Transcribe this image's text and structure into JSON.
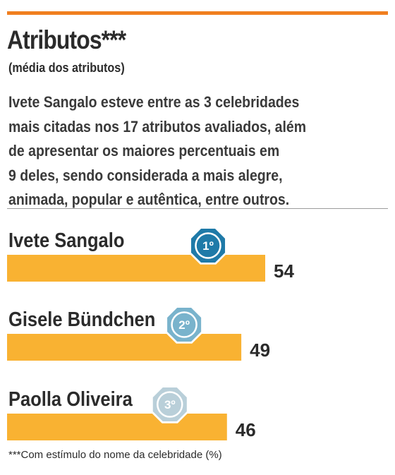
{
  "header": {
    "title": "Atributos***",
    "subtitle": "(média dos atributos)",
    "description_lines": [
      "Ivete Sangalo esteve entre as 3 celebridades",
      "mais citadas nos 17 atributos avaliados, além",
      "de apresentar os maiores percentuais em",
      "9 deles, sendo considerada a mais alegre,",
      "animada, popular e autêntica, entre outros."
    ]
  },
  "colors": {
    "accent_rule": "#f07f1f",
    "bar": "#f9b232",
    "rank_1": "#1f7aa8",
    "rank_2": "#79b3cc",
    "rank_3": "#b9cfd9"
  },
  "chart_data": {
    "type": "bar",
    "orientation": "horizontal",
    "categories": [
      "Ivete Sangalo",
      "Gisele Bündchen",
      "Paolla Oliveira"
    ],
    "values": [
      54,
      49,
      46
    ],
    "ranks": [
      "1º",
      "2º",
      "3º"
    ],
    "title": "Atributos***",
    "subtitle": "(média dos atributos)",
    "xlabel": "",
    "ylabel": "",
    "xlim": [
      0,
      54
    ],
    "grid": false,
    "legend": "none"
  },
  "footnote": "***Com estímulo do nome da celebridade (%)"
}
